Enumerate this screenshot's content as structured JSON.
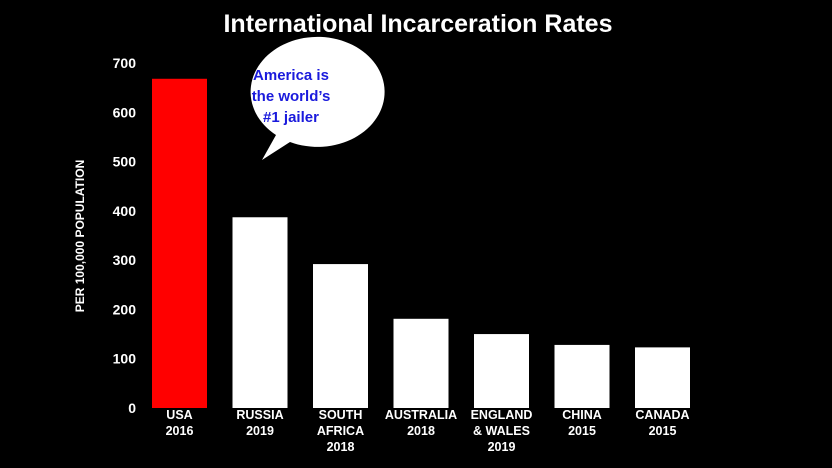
{
  "chart_data": {
    "type": "bar",
    "title": "International Incarceration Rates",
    "ylabel": "PER 100,000 POPULATION",
    "xlabel": "",
    "ylim": [
      0,
      700
    ],
    "yticks": [
      0,
      100,
      200,
      300,
      400,
      500,
      600,
      700
    ],
    "grid": false,
    "categories": [
      [
        "USA",
        "2016"
      ],
      [
        "RUSSIA",
        "2019"
      ],
      [
        "SOUTH",
        "AFRICA",
        "2018"
      ],
      [
        "AUSTRALIA",
        "2018"
      ],
      [
        "ENGLAND",
        "& WALES",
        "2019"
      ],
      [
        "CHINA",
        "2015"
      ],
      [
        "CANADA",
        "2015"
      ]
    ],
    "values": [
      668,
      387,
      292,
      181,
      150,
      128,
      123
    ],
    "colors": [
      "#ff0000",
      "#ffffff",
      "#ffffff",
      "#ffffff",
      "#ffffff",
      "#ffffff",
      "#ffffff"
    ],
    "background": "#000000",
    "annotation": {
      "lines": [
        "America is",
        "the world’s",
        "#1 jailer"
      ],
      "color": "#1a1adc",
      "bubble_color": "#ffffff"
    }
  }
}
